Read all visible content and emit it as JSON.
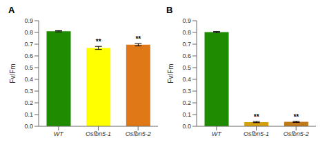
{
  "chart_data": [
    {
      "type": "bar",
      "title": "A",
      "categories": [
        "WT",
        "Osfbn5-1",
        "Osfbn5-2"
      ],
      "values": [
        0.81,
        0.668,
        0.695
      ],
      "errors": [
        0.005,
        0.013,
        0.01
      ],
      "colors": [
        "#1e8b00",
        "#ffff00",
        "#e07818"
      ],
      "ylabel": "Fv/Fm",
      "ylim": [
        0,
        0.9
      ],
      "yticks": [
        {
          "value": 0,
          "label": "0.0"
        },
        0.1,
        0.2,
        0.3,
        0.4,
        0.5,
        0.6,
        0.7,
        0.8,
        0.9
      ],
      "annotations": [
        {
          "category": "Osfbn5-1",
          "text": "**"
        },
        {
          "category": "Osfbn5-2",
          "text": "**"
        }
      ]
    },
    {
      "type": "bar",
      "title": "B",
      "categories": [
        "WT",
        "Osfbn5-1",
        "Osfbn5-2"
      ],
      "values": [
        0.803,
        0.036,
        0.038
      ],
      "errors": [
        0.005,
        0.005,
        0.005
      ],
      "colors": [
        "#1e8b00",
        "#d4a010",
        "#c07818"
      ],
      "ylabel": "Fv/Fm",
      "ylim": [
        0,
        0.9
      ],
      "yticks": [
        {
          "value": 0,
          "label": "0.0"
        },
        0.1,
        0.2,
        0.3,
        0.4,
        0.5,
        0.6,
        0.7,
        0.8,
        0.9
      ],
      "annotations": [
        {
          "category": "Osfbn5-1",
          "text": "**"
        },
        {
          "category": "Osfbn5-2",
          "text": "**"
        }
      ]
    }
  ]
}
